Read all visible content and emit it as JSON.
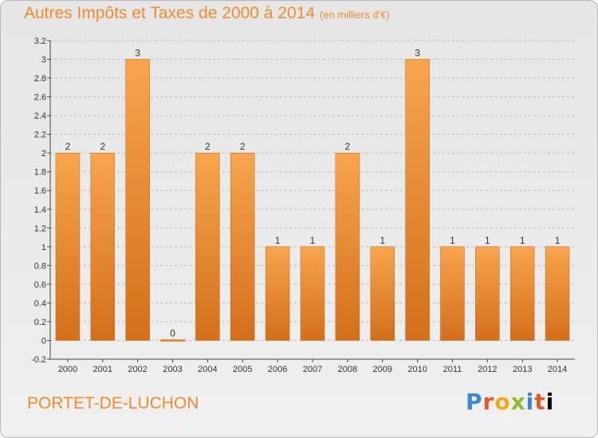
{
  "title": "Autres Impôts et Taxes de 2000 à 2014",
  "subtitle": "(en milliers d'€)",
  "place": "PORTET-DE-LUCHON",
  "logo": "Proxiti",
  "colors": {
    "bar_light": "#f7a54e",
    "bar_dark": "#d46f1a",
    "title": "#f08c2c",
    "grid": "#bbbbbb"
  },
  "chart_data": {
    "type": "bar",
    "categories": [
      "2000",
      "2001",
      "2002",
      "2003",
      "2004",
      "2005",
      "2006",
      "2007",
      "2008",
      "2009",
      "2010",
      "2011",
      "2012",
      "2013",
      "2014"
    ],
    "values": [
      2,
      2,
      3,
      0,
      2,
      2,
      1,
      1,
      2,
      1,
      3,
      1,
      1,
      1,
      1
    ],
    "data_labels": [
      "2",
      "2",
      "3",
      "0",
      "2",
      "2",
      "1",
      "1",
      "2",
      "1",
      "3",
      "1",
      "1",
      "1",
      "1"
    ],
    "yticks": [
      "3.2",
      "3",
      "2.8",
      "2.6",
      "2.4",
      "2.2",
      "2",
      "1.8",
      "1.6",
      "1.4",
      "1.2",
      "1",
      "0.8",
      "0.6",
      "0.4",
      "0.2",
      "0",
      "-0.2"
    ],
    "ylim": [
      -0.2,
      3.2
    ],
    "grid": true,
    "legend": "none"
  }
}
